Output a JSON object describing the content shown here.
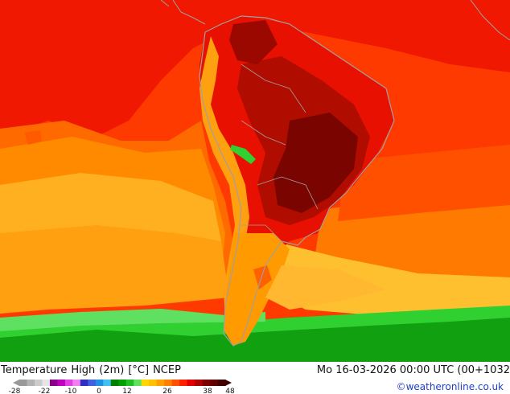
{
  "footer": {
    "title_parts": [
      "Temperature",
      "High",
      "(2m)",
      "[°C]",
      "NCEP"
    ],
    "datetime": "Mo 16-03-2026 00:00 UTC (00+1032",
    "credit": "©weatheronline.co.uk"
  },
  "legend": {
    "tick_labels": [
      "-28",
      "-22",
      "-10",
      "0",
      "12",
      "26",
      "38",
      "48"
    ],
    "colors": [
      "#999999",
      "#b3b3b3",
      "#cccccc",
      "#e6e6e6",
      "#8b008b",
      "#c000c0",
      "#e040e0",
      "#f080f0",
      "#3030c0",
      "#4060e0",
      "#2090e0",
      "#40c0f0",
      "#008000",
      "#00a000",
      "#20c020",
      "#60e060",
      "#ffd700",
      "#ffc000",
      "#ffa000",
      "#ff8000",
      "#ff5000",
      "#ff2000",
      "#e00000",
      "#b00000",
      "#800000",
      "#600000",
      "#400000"
    ]
  },
  "map": {
    "region": "South America",
    "colors": {
      "ocean_warm": "#ff8a00",
      "ocean_hot": "#ff4a00",
      "land_hot": "#e81000",
      "land_very_hot": "#a50a00",
      "land_extreme": "#7a0500",
      "cool_yellow": "#ffc020",
      "cool_orange": "#ffa010",
      "green": "#20c020",
      "dark_green": "#109010",
      "coastline": "#a0a0a0"
    }
  }
}
